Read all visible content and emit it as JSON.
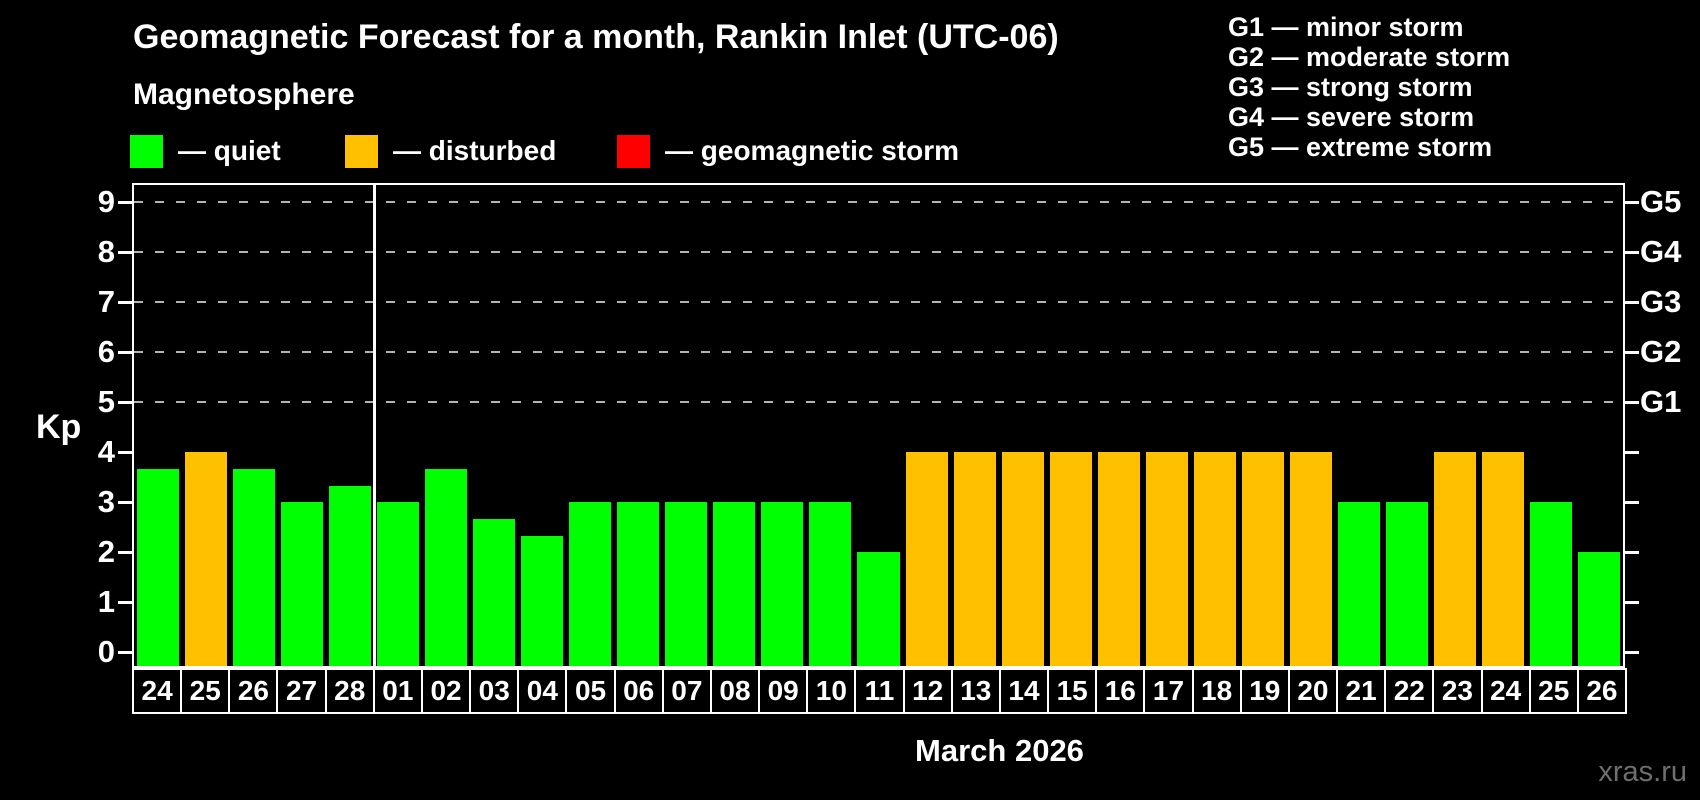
{
  "header": {
    "title": "Geomagnetic Forecast for a month, Rankin Inlet (UTC-06)",
    "subtitle": "Magnetosphere"
  },
  "legend": {
    "items": [
      {
        "key": "quiet",
        "label": "— quiet",
        "color": "#00ff00"
      },
      {
        "key": "disturbed",
        "label": "— disturbed",
        "color": "#ffc000"
      },
      {
        "key": "storm",
        "label": "— geomagnetic storm",
        "color": "#ff0000"
      }
    ]
  },
  "storm_scale": [
    "G1 — minor storm",
    "G2 — moderate storm",
    "G3 — strong storm",
    "G4 — severe storm",
    "G5 — extreme storm"
  ],
  "watermark": "xras.ru",
  "chart_data": {
    "type": "bar",
    "title": "Geomagnetic Forecast for a month, Rankin Inlet (UTC-06)",
    "ylabel": "Kp",
    "xlabel": "March 2026",
    "ylim": [
      0,
      9
    ],
    "yticks": [
      0,
      1,
      2,
      3,
      4,
      5,
      6,
      7,
      8,
      9
    ],
    "gridlines_at_kp": [
      5,
      6,
      7,
      8,
      9
    ],
    "grid_style": "dashed",
    "legend_position": "top",
    "right_axis": [
      {
        "kp": 5,
        "label": "G1"
      },
      {
        "kp": 6,
        "label": "G2"
      },
      {
        "kp": 7,
        "label": "G3"
      },
      {
        "kp": 8,
        "label": "G4"
      },
      {
        "kp": 9,
        "label": "G5"
      }
    ],
    "month_divider_after_index": 4,
    "categories": [
      "24",
      "25",
      "26",
      "27",
      "28",
      "01",
      "02",
      "03",
      "04",
      "05",
      "06",
      "07",
      "08",
      "09",
      "10",
      "11",
      "12",
      "13",
      "14",
      "15",
      "16",
      "17",
      "18",
      "19",
      "20",
      "21",
      "22",
      "23",
      "24",
      "25",
      "26"
    ],
    "values": [
      3.67,
      4,
      3.67,
      3,
      3.33,
      3,
      3.67,
      2.67,
      2.33,
      3,
      3,
      3,
      3,
      3,
      3,
      2,
      4,
      4,
      4,
      4,
      4,
      4,
      4,
      4,
      4,
      3,
      3,
      4,
      4,
      3,
      2
    ],
    "statuses": [
      "quiet",
      "disturbed",
      "quiet",
      "quiet",
      "quiet",
      "quiet",
      "quiet",
      "quiet",
      "quiet",
      "quiet",
      "quiet",
      "quiet",
      "quiet",
      "quiet",
      "quiet",
      "quiet",
      "disturbed",
      "disturbed",
      "disturbed",
      "disturbed",
      "disturbed",
      "disturbed",
      "disturbed",
      "disturbed",
      "disturbed",
      "quiet",
      "quiet",
      "disturbed",
      "disturbed",
      "quiet",
      "quiet"
    ],
    "colors": {
      "quiet": "#00ff00",
      "disturbed": "#ffc000",
      "storm": "#ff0000"
    }
  }
}
